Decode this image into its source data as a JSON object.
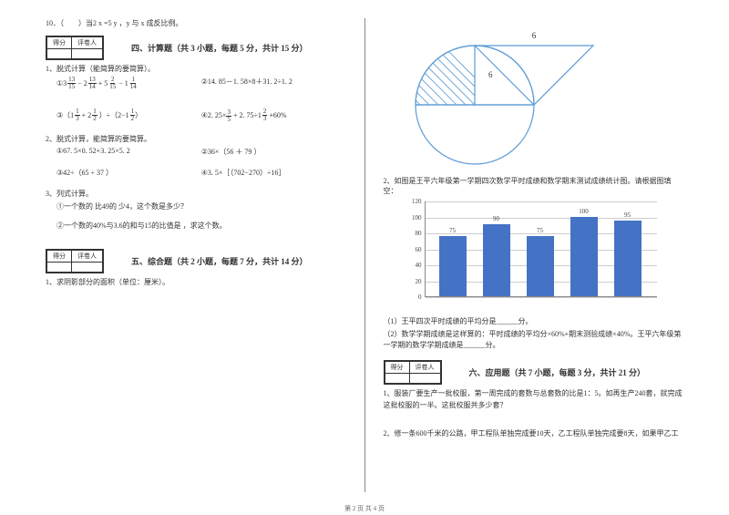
{
  "q10": "10．（　　）当2 x =5 y ，y 与 x 成反比例。",
  "scorebox": {
    "c1": "得分",
    "c2": "评卷人"
  },
  "section4_title": "四、计算题（共 3 小题，每题 5 分，共计 15 分）",
  "s4q1": "1、脱式计算（能简算的要简算）。",
  "s4q1a_pre": "①",
  "s4q1a_f1n": "13",
  "s4q1a_f1d": "15",
  "s4q1a_w1": "3",
  "s4q1a_op1": "−",
  "s4q1a_w2": "2",
  "s4q1a_f2n": "13",
  "s4q1a_f2d": "14",
  "s4q1a_op2": "+",
  "s4q1a_w3": "5",
  "s4q1a_f3n": "2",
  "s4q1a_f3d": "15",
  "s4q1a_op3": "−",
  "s4q1a_w4": "1",
  "s4q1a_f4n": "1",
  "s4q1a_f4d": "14",
  "s4q1b": "②14. 85－1. 58×8＋31. 2÷1. 2",
  "s4q1c_pre": "③（",
  "s4q1c_w1": "1",
  "s4q1c_f1n": "1",
  "s4q1c_f1d": "3",
  "s4q1c_op1": "+",
  "s4q1c_w2": "2",
  "s4q1c_f2n": "1",
  "s4q1c_f2d": "2",
  "s4q1c_mid": "）÷（2−",
  "s4q1c_w3": "1",
  "s4q1c_f3n": "1",
  "s4q1c_f3d": "2",
  "s4q1c_post": "）",
  "s4q1d_pre": "④2. 25×",
  "s4q1d_f1n": "3",
  "s4q1d_f1d": "5",
  "s4q1d_mid1": "+ 2. 75÷",
  "s4q1d_w2": "1",
  "s4q1d_f2n": "2",
  "s4q1d_f2d": "3",
  "s4q1d_post": "+60%",
  "s4q2": "2、脱式计算，能简算的要简算。",
  "s4q2a": "①67. 5×0. 52+3. 25×5. 2",
  "s4q2b": "②36×（56 ＋ 79 ）",
  "s4q2c": "③42÷（65 ÷ 37 ）",
  "s4q2d": "④3. 5×［（702−270）÷16］",
  "s4q3": "3、列式计算。",
  "s4q3a": "①一个数的 比49的 少4，这个数是多少？",
  "s4q3b": "②一个数的40%与3.6的和与15的比值是 ，求这个数。",
  "section5_title": "五、综合题（共 2 小题，每题 7 分，共计 14 分）",
  "s5q1": "1、求阴影部分的面积（单位：厘米）。",
  "diagram": {
    "top_label": "6",
    "inner_label": "6"
  },
  "s5q2": "2、如图是王平六年级第一学期四次数学平时成绩和数学期末测试成绩统计图。请根据图填空：",
  "chart": {
    "type": "bar",
    "y_max": 120,
    "y_step": 20,
    "ticks": [
      "0",
      "20",
      "40",
      "60",
      "80",
      "100",
      "120"
    ],
    "values": [
      75,
      90,
      75,
      100,
      95
    ],
    "bar_color": "#4472c4",
    "grid_color": "#cccccc",
    "axis_color": "#888888",
    "label_color": "#444444"
  },
  "s5q2a": "（1）王平四次平时成绩的平均分是______分。",
  "s5q2b": "（2）数学学期成绩是这样算的：平时成绩的平均分×60%+期末测验成绩×40%。王平六年级第一学期的数学学期成绩是______分。",
  "section6_title": "六、应用题（共 7 小题，每题 3 分，共计 21 分）",
  "s6q1": "1、服装厂要生产一批校服，第一周完成的套数与总套数的比是1：5。如再生产240套，就完成这批校服的一半。这批校服共多少套？",
  "s6q2": "2、修一条600千米的公路，甲工程队单独完成要10天，乙工程队单独完成要8天，如果甲乙工",
  "footer": "第 2 页 共 4 页"
}
